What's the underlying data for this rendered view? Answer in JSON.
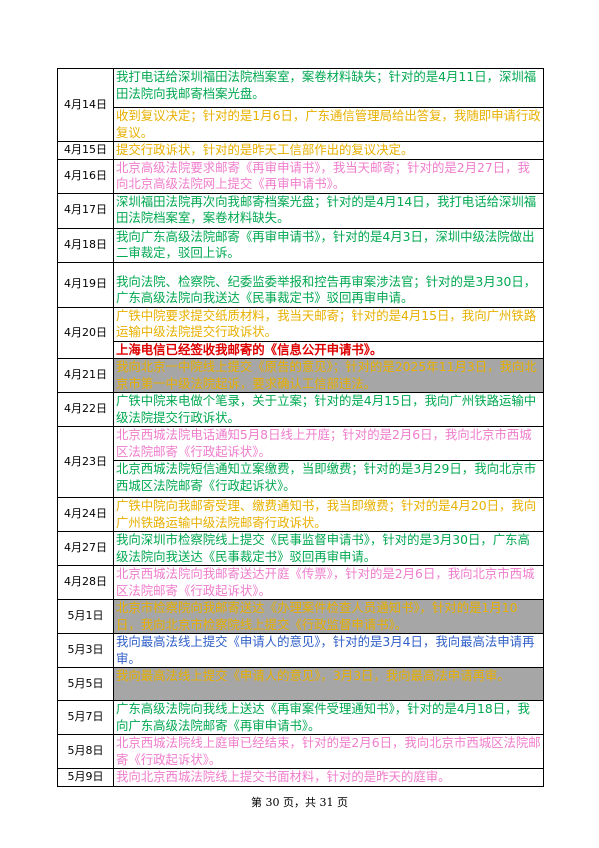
{
  "table": {
    "rows": [
      {
        "date": "4月14日",
        "entries": [
          "我打电话给深圳福田法院档案室，案卷材料缺失；针对的是4月11日，深圳福田法院向我邮寄档案光盘。",
          "收到复议决定；针对的是1月6日，广东通信管理局给出答复，我随即申请行政复议。"
        ]
      },
      {
        "date": "4月15日",
        "entries": [
          "提交行政诉状，针对的是昨天工信部作出的复议决定。"
        ]
      },
      {
        "date": "4月16日",
        "entries": [
          "北京高级法院要求邮寄《再审申请书》，我当天邮寄；针对的是2月27日，我向北京高级法院网上提交《再审申请书》。"
        ]
      },
      {
        "date": "4月17日",
        "entries": [
          "深圳福田法院再次向我邮寄档案光盘；针对的是4月14日，我打电话给深圳福田法院档案室，案卷材料缺失。"
        ]
      },
      {
        "date": "4月18日",
        "entries": [
          "我向广东高级法院邮寄《再审申请书》，针对的是4月3日，深圳中级法院做出二审裁定，驳回上诉。"
        ]
      },
      {
        "date": "4月19日",
        "entries": [
          "我向法院、检察院、纪委监委举报和控告再审案涉法官；针对的是3月30日，广东高级法院向我送达《民事裁定书》驳回再审申请。"
        ]
      },
      {
        "date": "4月20日",
        "entries": [
          "广铁中院要求提交纸质材料，我当天邮寄；针对的是4月15日，我向广州铁路运输中级法院提交行政诉状。",
          "上海电信已经签收我邮寄的《信息公开申请书》。"
        ]
      },
      {
        "date": "4月21日",
        "entries": [
          "我向北京一中院线上提交《原告的意见》；针对的是2025年11月3日，我向北京市第一中级法院起诉，要求确认工信部违法。"
        ]
      },
      {
        "date": "4月22日",
        "entries": [
          "广铁中院来电做个笔录，关于立案；针对的是4月15日，我向广州铁路运输中级法院提交行政诉状。"
        ]
      },
      {
        "date": "4月23日",
        "entries": [
          "北京西城法院电话通知5月8日线上开庭；针对的是2月6日，我向北京市西城区法院邮寄《行政起诉状》。",
          "北京西城法院短信通知立案缴费，当即缴费；针对的是3月29日，我向北京市西城区法院邮寄《行政起诉状》。"
        ]
      },
      {
        "date": "4月24日",
        "entries": [
          "广铁中院向我邮寄受理、缴费通知书，我当即缴费；针对的是4月20日，我向广州铁路运输中级法院邮寄行政诉状。"
        ]
      },
      {
        "date": "4月27日",
        "entries": [
          "我向深圳市检察院线上提交《民事监督申请书》，针对的是3月30日，广东高级法院向我送达《民事裁定书》驳回再审申请。"
        ]
      },
      {
        "date": "4月28日",
        "entries": [
          "北京西城法院向我邮寄送达开庭《传票》，针对的是2月6日，我向北京市西城区法院邮寄《行政起诉状》。"
        ]
      },
      {
        "date": "5月1日",
        "entries": [
          "北京市检察院向我邮寄送达《办理案件检查人员通知书》，针对的是1月10日，我向北京市检察院线上提交《行政监督申请书》。"
        ]
      },
      {
        "date": "5月3日",
        "entries": [
          "我向最高法线上提交《申请人的意见》，针对的是3月4日，我向最高法申请再审。"
        ]
      },
      {
        "date": "5月5日",
        "entries": [
          "我向最高法线上提交《申请人的意见》，3月3日，我向最高法申请再审。"
        ]
      },
      {
        "date": "5月7日",
        "entries": [
          "广东高级法院向我线上送达《再审案件受理通知书》，针对的是4月18日，我向广东高级法院邮寄《再审申请书》。"
        ]
      },
      {
        "date": "5月8日",
        "entries": [
          "北京西城法院线上庭审已经结束，针对的是2月6日，我向北京市西城区法院邮寄《行政起诉状》。"
        ]
      },
      {
        "date": "5月9日",
        "entries": [
          "我向北京西城法院线上提交书面材料，针对的是昨天的庭审。"
        ]
      }
    ]
  },
  "footer": "第 30 页，共 31 页"
}
